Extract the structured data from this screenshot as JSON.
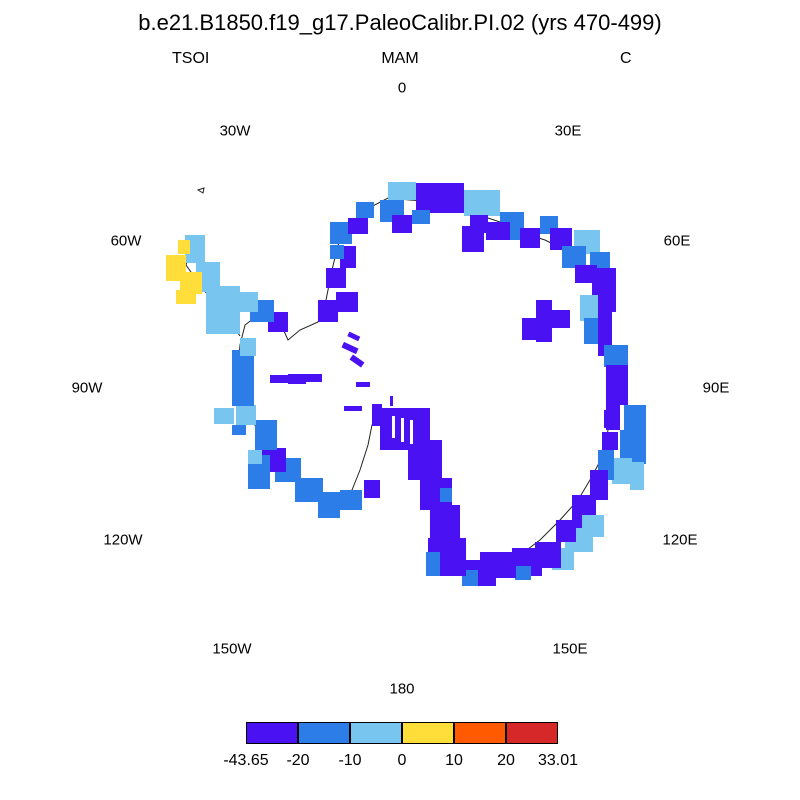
{
  "header": {
    "title": "b.e21.B1850.f19_g17.PaleoCalibr.PI.02 (yrs 470-499)",
    "variable": "TSOI",
    "season": "MAM",
    "units": "C"
  },
  "longitude_labels": [
    "0",
    "30E",
    "60E",
    "90E",
    "120E",
    "150E",
    "180",
    "150W",
    "120W",
    "90W",
    "60W",
    "30W"
  ],
  "colorbar": {
    "colors": [
      "#4a12f2",
      "#2c7de8",
      "#78c6f0",
      "#ffde3a",
      "#ff5a00",
      "#d62828"
    ],
    "tick_labels": [
      "-43.65",
      "-20",
      "-10",
      "0",
      "10",
      "20",
      "33.01"
    ]
  },
  "map_colors": {
    "lt_blue": "#78c6f0",
    "md_blue": "#2c7de8",
    "dk_blue": "#4a12f2",
    "yellow": "#ffde3a"
  }
}
